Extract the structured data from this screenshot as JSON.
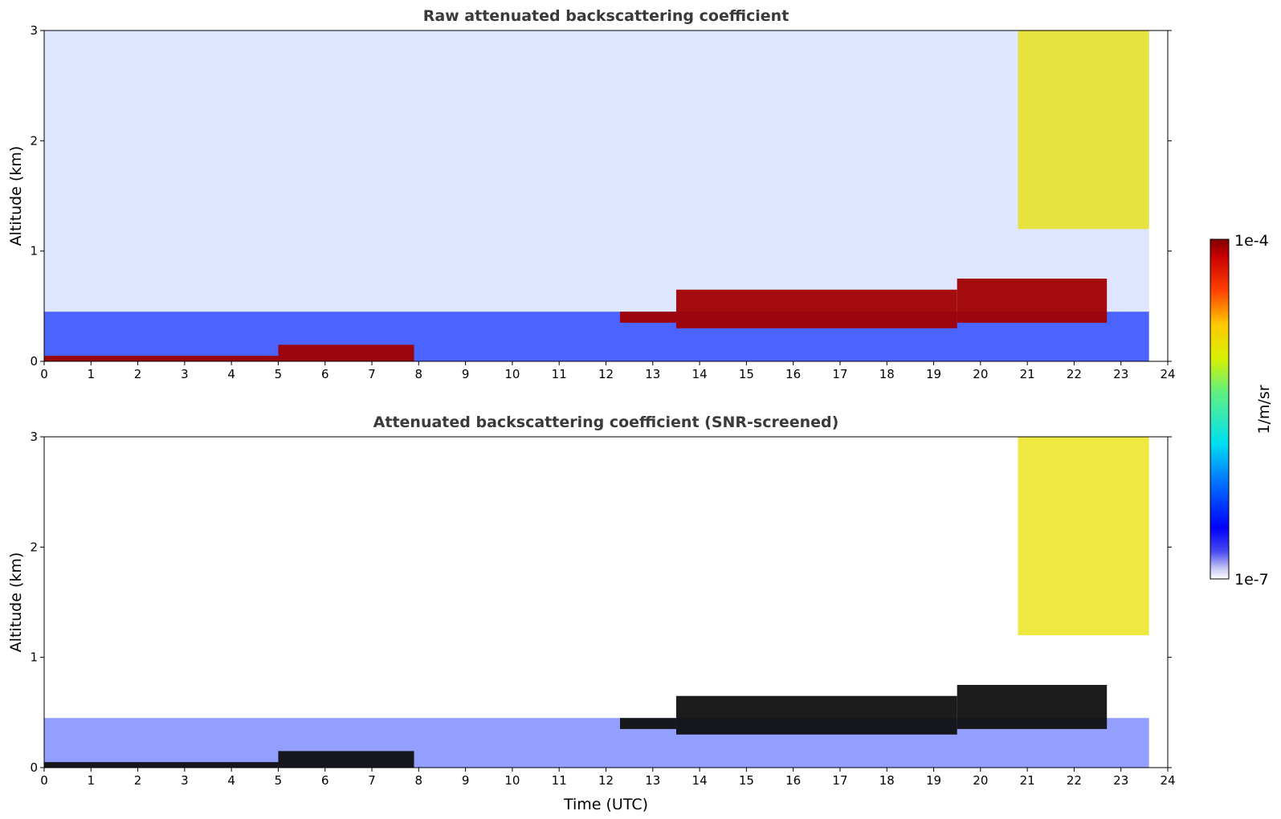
{
  "chart_data": [
    {
      "type": "heatmap",
      "title": "Raw attenuated backscattering coefficient",
      "xlabel": "",
      "ylabel": "Altitude (km)",
      "xlim": [
        0,
        24
      ],
      "ylim": [
        0,
        3
      ],
      "xticks": [
        "0",
        "1",
        "2",
        "3",
        "4",
        "5",
        "6",
        "7",
        "8",
        "9",
        "10",
        "11",
        "12",
        "13",
        "14",
        "15",
        "16",
        "17",
        "18",
        "19",
        "20",
        "21",
        "22",
        "23",
        "24"
      ],
      "yticks": [
        "0",
        "1",
        "2",
        "3"
      ],
      "data_end_time": 23.6,
      "layers": [
        {
          "t": [
            0,
            5
          ],
          "base_km": 0.0,
          "top_km": 0.05,
          "intensity": "high"
        },
        {
          "t": [
            5,
            7.9
          ],
          "base_km": 0.0,
          "top_km": 0.15,
          "intensity": "high"
        },
        {
          "t": [
            12.3,
            13.5
          ],
          "base_km": 0.35,
          "top_km": 0.45,
          "intensity": "high"
        },
        {
          "t": [
            13.5,
            19.5
          ],
          "base_km": 0.3,
          "top_km": 0.65,
          "intensity": "high"
        },
        {
          "t": [
            19.5,
            22.7
          ],
          "base_km": 0.35,
          "top_km": 0.75,
          "intensity": "high"
        },
        {
          "t": [
            20.8,
            23.6
          ],
          "base_km": 1.2,
          "top_km": 3.0,
          "intensity": "medium"
        }
      ]
    },
    {
      "type": "heatmap",
      "title": "Attenuated backscattering coefficient (SNR-screened)",
      "xlabel": "Time (UTC)",
      "ylabel": "Altitude (km)",
      "xlim": [
        0,
        24
      ],
      "ylim": [
        0,
        3
      ],
      "xticks": [
        "0",
        "1",
        "2",
        "3",
        "4",
        "5",
        "6",
        "7",
        "8",
        "9",
        "10",
        "11",
        "12",
        "13",
        "14",
        "15",
        "16",
        "17",
        "18",
        "19",
        "20",
        "21",
        "22",
        "23",
        "24"
      ],
      "yticks": [
        "0",
        "1",
        "2",
        "3"
      ],
      "data_end_time": 23.6,
      "layers": [
        {
          "t": [
            0,
            5
          ],
          "base_km": 0.0,
          "top_km": 0.05,
          "intensity": "high"
        },
        {
          "t": [
            5,
            7.9
          ],
          "base_km": 0.0,
          "top_km": 0.15,
          "intensity": "high"
        },
        {
          "t": [
            12.3,
            13.5
          ],
          "base_km": 0.35,
          "top_km": 0.45,
          "intensity": "high"
        },
        {
          "t": [
            13.5,
            19.5
          ],
          "base_km": 0.3,
          "top_km": 0.65,
          "intensity": "high"
        },
        {
          "t": [
            19.5,
            22.7
          ],
          "base_km": 0.35,
          "top_km": 0.75,
          "intensity": "high"
        },
        {
          "t": [
            20.8,
            23.6
          ],
          "base_km": 1.2,
          "top_km": 3.0,
          "intensity": "medium"
        }
      ]
    }
  ],
  "colorbar": {
    "label": "1/m/sr",
    "max_label": "1e-4",
    "min_label": "1e-7",
    "colormap": "jet"
  }
}
